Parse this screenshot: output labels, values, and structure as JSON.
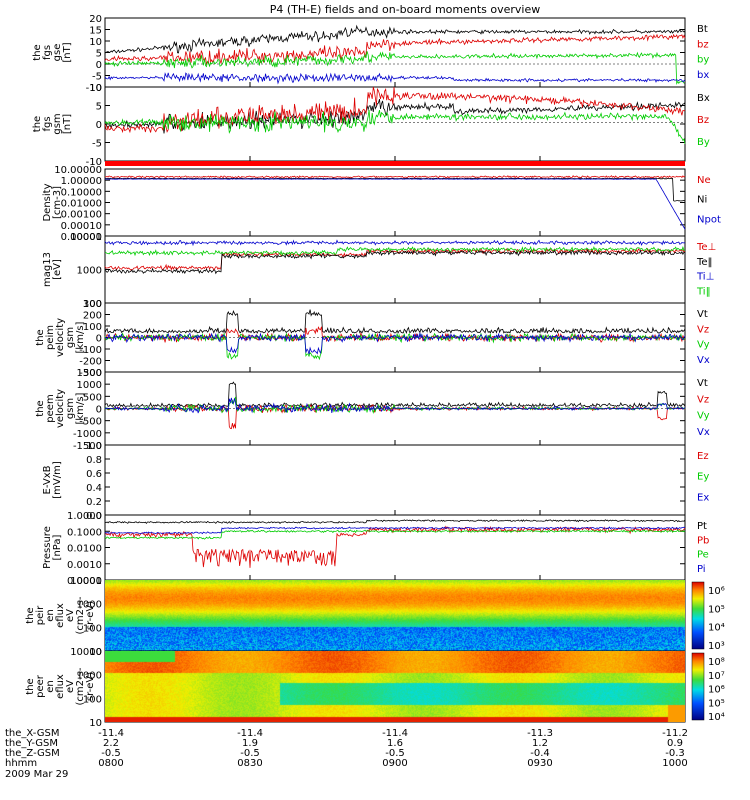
{
  "title": "P4 (TH-E) fields and on-board moments overview",
  "colors": {
    "black": "#000000",
    "red": "#dd0000",
    "green": "#00cc00",
    "blue": "#0000cc",
    "orange": "#ff0000"
  },
  "chart_data": {
    "type": "line",
    "x_ticks": [
      "0800",
      "0830",
      "0900",
      "0930",
      "1000"
    ],
    "footer": {
      "rows": [
        {
          "label": "the_X-GSM",
          "values": [
            "-11.4",
            "-11.4",
            "-11.4",
            "-11.3",
            "-11.2"
          ]
        },
        {
          "label": "the_Y-GSM",
          "values": [
            "2.2",
            "1.9",
            "1.6",
            "1.2",
            "0.9"
          ]
        },
        {
          "label": "the_Z-GSM",
          "values": [
            "-0.5",
            "-0.5",
            "-0.5",
            "-0.4",
            "-0.3"
          ]
        },
        {
          "label": "hhmm",
          "values": [
            "0800",
            "0830",
            "0900",
            "0930",
            "1000"
          ]
        }
      ],
      "date": "2009 Mar 29"
    },
    "panels": [
      {
        "id": "fgs_gse",
        "ylabel": [
          "the",
          "fgs",
          "gse",
          "[nT]"
        ],
        "ticks": [
          "20",
          "15",
          "10",
          "5",
          "0",
          "-5",
          "-10"
        ],
        "ylim": [
          -10,
          20
        ],
        "log": false,
        "series": [
          {
            "name": "Bt",
            "color": "black"
          },
          {
            "name": "bz",
            "color": "red"
          },
          {
            "name": "by",
            "color": "green"
          },
          {
            "name": "bx",
            "color": "blue"
          }
        ]
      },
      {
        "id": "fgs_gsm",
        "ylabel": [
          "the",
          "fgs",
          "gsm",
          "[nT]"
        ],
        "ticks": [
          "10",
          "5",
          "0",
          "-5",
          "-10"
        ],
        "ylim": [
          -13,
          12
        ],
        "log": false,
        "series": [
          {
            "name": "Bx",
            "color": "black"
          },
          {
            "name": "Bz",
            "color": "red"
          },
          {
            "name": "By",
            "color": "green"
          }
        ]
      },
      {
        "id": "density",
        "ylabel": [
          "Density",
          "[cm-3]"
        ],
        "ticks": [
          "10.00000",
          "1.00000",
          "0.10000",
          "0.01000",
          "0.00100",
          "0.00010",
          "0.00001"
        ],
        "ylim": [
          -5,
          1
        ],
        "log": true,
        "series": [
          {
            "name": "Ne",
            "color": "red"
          },
          {
            "name": "Ni",
            "color": "black"
          },
          {
            "name": "Npot",
            "color": "blue"
          }
        ]
      },
      {
        "id": "temperature",
        "ylabel": [
          "mag13",
          "[eV]"
        ],
        "ticks": [
          "10000",
          "1000",
          "100"
        ],
        "ylim": [
          2,
          4
        ],
        "log": true,
        "series": [
          {
            "name": "Te⊥",
            "color": "red"
          },
          {
            "name": "Te‖",
            "color": "black"
          },
          {
            "name": "Ti⊥",
            "color": "blue"
          },
          {
            "name": "Ti‖",
            "color": "green"
          }
        ]
      },
      {
        "id": "peim_vel",
        "ylabel": [
          "the",
          "peim",
          "velocity",
          "gsm",
          "[km/s]"
        ],
        "ticks": [
          "300",
          "200",
          "100",
          "0",
          "-100",
          "-200",
          "-300"
        ],
        "ylim": [
          -300,
          300
        ],
        "log": false,
        "series": [
          {
            "name": "Vt",
            "color": "black"
          },
          {
            "name": "Vz",
            "color": "red"
          },
          {
            "name": "Vy",
            "color": "green"
          },
          {
            "name": "Vx",
            "color": "blue"
          }
        ]
      },
      {
        "id": "peem_vel",
        "ylabel": [
          "the",
          "peem",
          "velocity",
          "gsm",
          "[km/s]"
        ],
        "ticks": [
          "1500",
          "1000",
          "500",
          "0",
          "-500",
          "-1000",
          "-1500"
        ],
        "ylim": [
          -1500,
          1500
        ],
        "log": false,
        "series": [
          {
            "name": "Vt",
            "color": "black"
          },
          {
            "name": "Vz",
            "color": "red"
          },
          {
            "name": "Vy",
            "color": "green"
          },
          {
            "name": "Vx",
            "color": "blue"
          }
        ]
      },
      {
        "id": "efield",
        "ylabel": [
          "E-VxB",
          "[mV/m]"
        ],
        "ticks": [
          "1.0",
          "0.8",
          "0.6",
          "0.4",
          "0.2",
          "0.0"
        ],
        "ylim": [
          0,
          1
        ],
        "log": false,
        "series": [
          {
            "name": "Ez",
            "color": "red"
          },
          {
            "name": "Ey",
            "color": "green"
          },
          {
            "name": "Ex",
            "color": "blue"
          }
        ]
      },
      {
        "id": "pressure",
        "ylabel": [
          "Pressure",
          "[nPa]"
        ],
        "ticks": [
          "1.0000",
          "0.1000",
          "0.0100",
          "0.0010",
          "0.0001"
        ],
        "ylim": [
          -4,
          0
        ],
        "log": true,
        "series": [
          {
            "name": "Pt",
            "color": "black"
          },
          {
            "name": "Pb",
            "color": "red"
          },
          {
            "name": "Pe",
            "color": "green"
          },
          {
            "name": "Pi",
            "color": "blue"
          }
        ]
      },
      {
        "id": "peir_spec",
        "ylabel": [
          "the",
          "peir",
          "en",
          "eflux",
          "eV",
          "(cm2-s-",
          "sr-eV)"
        ],
        "ticks": [
          "10000",
          "1000",
          "100",
          "10"
        ],
        "ylim": [
          1,
          4.3
        ],
        "log": true,
        "colorbar": [
          "10⁶",
          "10⁵",
          "10⁴",
          "10³"
        ]
      },
      {
        "id": "peer_spec",
        "ylabel": [
          "the",
          "peer",
          "en",
          "eflux",
          "eV",
          "(cm2-s-",
          "sr-eV)"
        ],
        "ticks": [
          "10000",
          "1000",
          "100",
          "10"
        ],
        "ylim": [
          0.9,
          4.3
        ],
        "log": true,
        "colorbar": [
          "10⁸",
          "10⁷",
          "10⁶",
          "10⁵",
          "10⁴"
        ]
      }
    ]
  }
}
